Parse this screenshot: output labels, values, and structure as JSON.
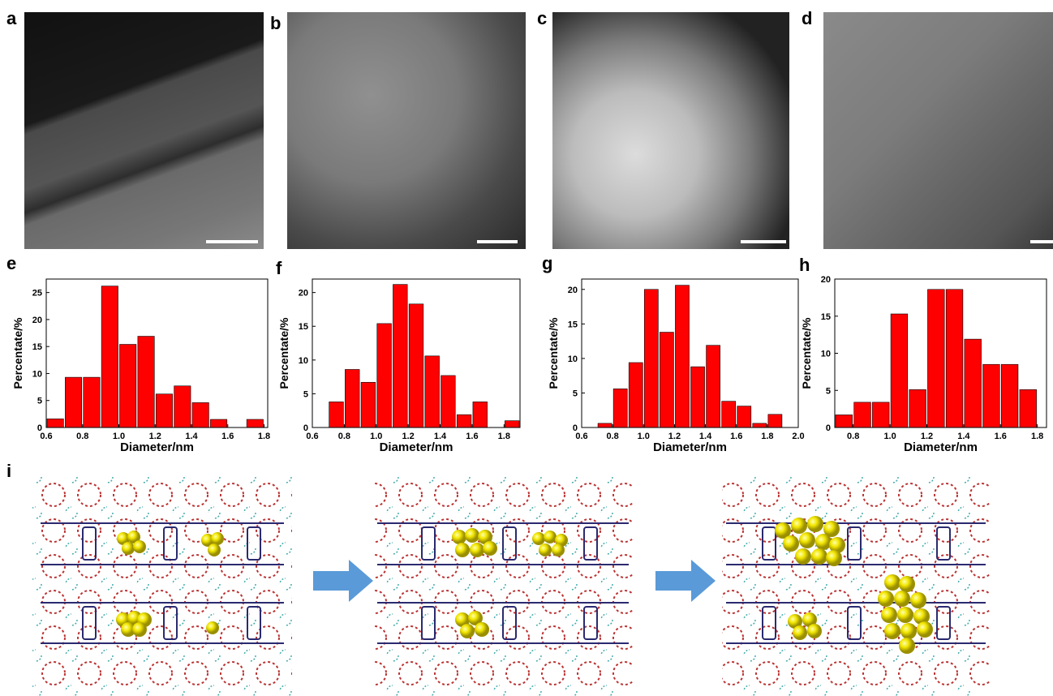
{
  "panel_labels": [
    "a",
    "b",
    "c",
    "d",
    "e",
    "f",
    "g",
    "h",
    "i"
  ],
  "chart_data": [
    {
      "type": "histogram",
      "color": "#ff0000",
      "xlabel": "Diameter/nm",
      "ylabel": "Percentate/%",
      "bins": [
        0.6,
        0.7,
        0.8,
        0.9,
        1.0,
        1.1,
        1.2,
        1.3,
        1.4,
        1.5,
        1.6,
        1.7,
        1.8
      ],
      "values": [
        1.6,
        9.3,
        9.3,
        26.2,
        15.4,
        16.9,
        6.2,
        7.7,
        4.6,
        1.5,
        0,
        1.5
      ],
      "xlim": [
        0.6,
        1.82
      ],
      "ylim": [
        0,
        27.5
      ],
      "xticks": [
        0.6,
        0.8,
        {
          "value": 1,
          "label": "1.0"
        },
        1.2,
        1.4,
        1.6,
        1.8
      ],
      "yticks": [
        0,
        5,
        10,
        15,
        20,
        25
      ]
    },
    {
      "type": "histogram",
      "color": "#ff0000",
      "xlabel": "Diameter/nm",
      "ylabel": "Percentate/%",
      "bins": [
        0.7,
        0.8,
        0.9,
        1.0,
        1.1,
        1.2,
        1.3,
        1.4,
        1.5,
        1.6,
        1.7,
        1.8,
        1.9
      ],
      "values": [
        3.8,
        8.6,
        6.7,
        15.4,
        21.2,
        18.3,
        10.6,
        7.7,
        1.9,
        3.8,
        0,
        1.0
      ],
      "xlim": [
        0.6,
        1.9
      ],
      "ylim": [
        0,
        22
      ],
      "xticks": [
        0.6,
        0.8,
        {
          "value": 1,
          "label": "1.0"
        },
        1.2,
        1.4,
        1.6,
        1.8
      ],
      "yticks": [
        0,
        5,
        10,
        15,
        20
      ]
    },
    {
      "type": "histogram",
      "color": "#ff0000",
      "xlabel": "Diameter/nm",
      "ylabel": "Percentate/%",
      "bins": [
        0.7,
        0.8,
        0.9,
        1.0,
        1.1,
        1.2,
        1.3,
        1.4,
        1.5,
        1.6,
        1.7,
        1.8,
        1.9
      ],
      "values": [
        0.6,
        5.6,
        9.4,
        20.0,
        13.8,
        20.6,
        8.8,
        11.9,
        3.8,
        3.1,
        0.6,
        1.9
      ],
      "xlim": [
        0.6,
        2.0
      ],
      "ylim": [
        0,
        21.5
      ],
      "xticks": [
        0.6,
        0.8,
        {
          "value": 1,
          "label": "1.0"
        },
        1.2,
        1.4,
        1.6,
        1.8,
        {
          "value": 2,
          "label": "2.0"
        }
      ],
      "yticks": [
        0,
        5,
        10,
        15,
        20
      ]
    },
    {
      "type": "histogram",
      "color": "#ff0000",
      "xlabel": "Diameter/nm",
      "ylabel": "Percentate/%",
      "bins": [
        0.7,
        0.8,
        0.9,
        1.0,
        1.1,
        1.2,
        1.3,
        1.4,
        1.5,
        1.6,
        1.7,
        1.8
      ],
      "values": [
        1.7,
        3.4,
        3.4,
        15.3,
        5.1,
        18.6,
        18.6,
        11.9,
        8.5,
        8.5,
        5.1
      ],
      "xlim": [
        0.7,
        1.85
      ],
      "ylim": [
        0,
        20
      ],
      "xticks": [
        0.8,
        {
          "value": 1,
          "label": "1.0"
        },
        1.2,
        1.4,
        1.6,
        1.8
      ],
      "yticks": [
        0,
        5,
        10,
        15,
        20
      ]
    }
  ]
}
